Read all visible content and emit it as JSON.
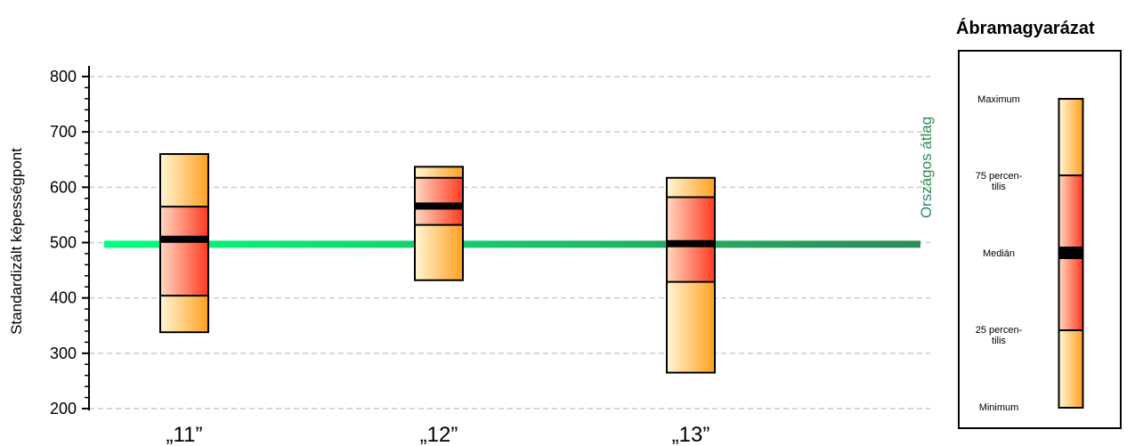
{
  "chart_data": {
    "type": "boxplot",
    "ylabel": "Standardizált képességpont",
    "ylim": [
      200,
      800
    ],
    "y_ticks": [
      200,
      300,
      400,
      500,
      600,
      700,
      800
    ],
    "grid": "horizontal-dashed",
    "categories": [
      "„11”",
      "„12”",
      "„13”"
    ],
    "boxes": [
      {
        "category": "„11”",
        "min": 338,
        "q1": 404,
        "median": 506,
        "q3": 565,
        "max": 660
      },
      {
        "category": "„12”",
        "min": 432,
        "q1": 532,
        "median": 566,
        "q3": 617,
        "max": 637
      },
      {
        "category": "„13”",
        "min": 265,
        "q1": 429,
        "median": 498,
        "q3": 582,
        "max": 617
      }
    ],
    "reference_line": {
      "label": "Országos átlag",
      "value": 497
    },
    "colors": {
      "box_outer": "#FFB840",
      "box_inner": "#FF4D33",
      "reference_start": "#00FF7F",
      "reference_end": "#2E8B57",
      "reference_label": "#2E8B57"
    }
  },
  "legend": {
    "title": "Ábramagyarázat",
    "labels": {
      "maximum": "Maximum",
      "q3": [
        "75 percen-",
        "tilis"
      ],
      "median": "Medián",
      "q1": [
        "25 percen-",
        "tilis"
      ],
      "minimum": "Minimum"
    }
  }
}
